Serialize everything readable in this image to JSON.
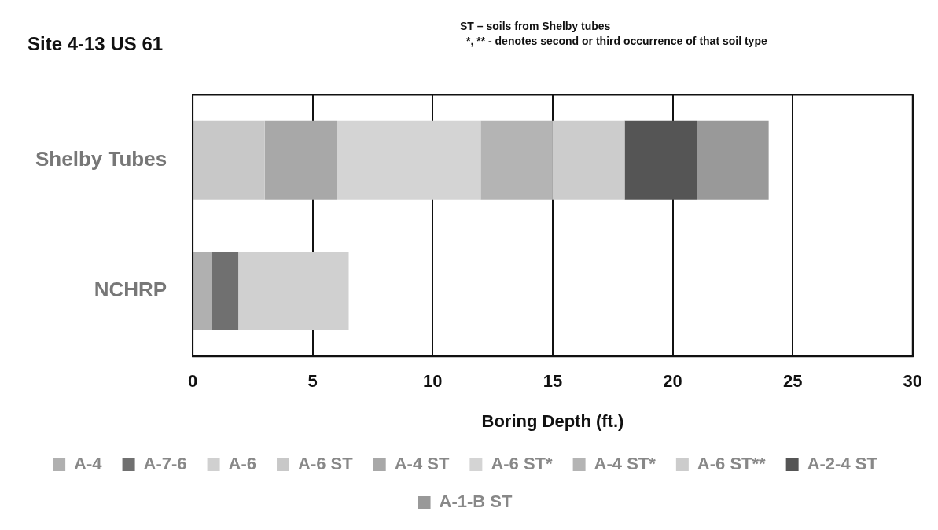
{
  "chart_data": {
    "type": "bar",
    "orientation": "horizontal",
    "stacked": true,
    "title": "Site 4-13 US 61",
    "xlabel": "Boring Depth (ft.)",
    "annotations": [
      "ST – soils from Shelby tubes",
      "*, ** -  denotes second or third occurrence of  that soil type"
    ],
    "categories": [
      "Shelby Tubes",
      "NCHRP"
    ],
    "series": [
      {
        "name": "A-4",
        "color": "#b0b0b0",
        "values": [
          null,
          0.8
        ]
      },
      {
        "name": "A-7-6",
        "color": "#707070",
        "values": [
          null,
          1.1
        ]
      },
      {
        "name": "A-6",
        "color": "#d0d0d0",
        "values": [
          null,
          4.6
        ]
      },
      {
        "name": "A-6 ST",
        "color": "#c8c8c8",
        "values": [
          3,
          null
        ]
      },
      {
        "name": "A-4 ST",
        "color": "#a8a8a8",
        "values": [
          3,
          null
        ]
      },
      {
        "name": "A-6 ST*",
        "color": "#d4d4d4",
        "values": [
          6,
          null
        ]
      },
      {
        "name": "A-4 ST*",
        "color": "#b4b4b4",
        "values": [
          3,
          null
        ]
      },
      {
        "name": "A-6 ST**",
        "color": "#cccccc",
        "values": [
          3,
          null
        ]
      },
      {
        "name": "A-2-4 ST",
        "color": "#555555",
        "values": [
          3,
          null
        ]
      },
      {
        "name": "A-1-B ST",
        "color": "#999999",
        "values": [
          3,
          null
        ]
      }
    ],
    "xlim": [
      0,
      30
    ],
    "xticks": [
      0,
      5,
      10,
      15,
      20,
      25,
      30
    ],
    "grid": "x",
    "legend": "bottom"
  }
}
